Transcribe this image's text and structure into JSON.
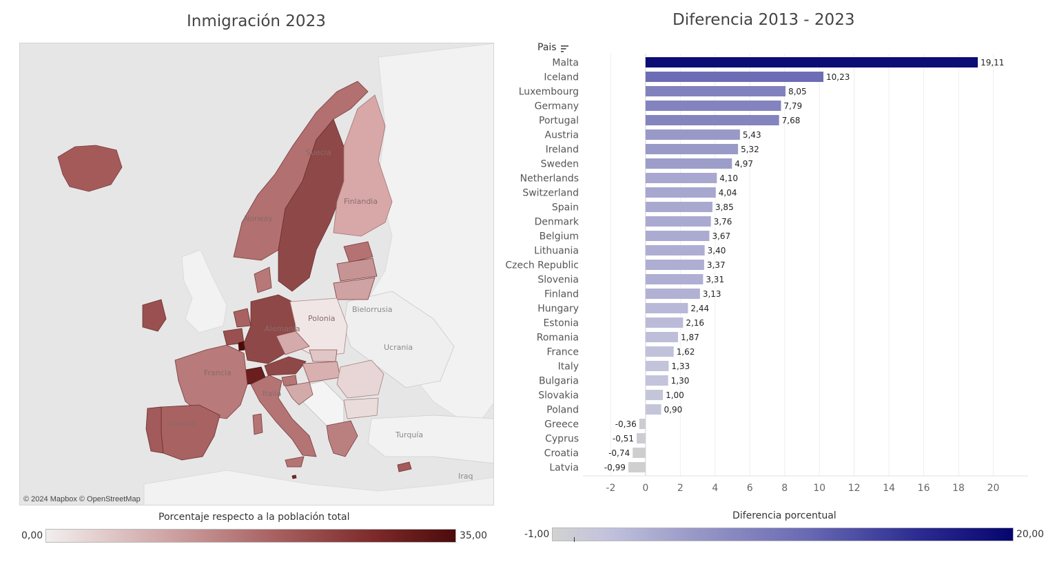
{
  "map": {
    "title": "Inmigración 2023",
    "attribution": "© 2024 Mapbox © OpenStreetMap",
    "labels": {
      "suecia": "Suecia",
      "finlandia": "Finlandia",
      "noruega": "Norway",
      "polonia": "Polonia",
      "bielorrusia": "Bielorrusia",
      "ucrania": "Ucrania",
      "alemania": "Alemania",
      "francia": "Francia",
      "espana": "España",
      "italia": "Italia",
      "turquia": "Turquía",
      "iraq": "Iraq"
    },
    "legend": {
      "title": "Porcentaje respecto a la población total",
      "min": "0,00",
      "max": "35,00"
    }
  },
  "chart_data": {
    "type": "bar",
    "orientation": "horizontal",
    "title": "Diferencia 2013 - 2023",
    "category_header": "Pais",
    "categories": [
      "Malta",
      "Iceland",
      "Luxembourg",
      "Germany",
      "Portugal",
      "Austria",
      "Ireland",
      "Sweden",
      "Netherlands",
      "Switzerland",
      "Spain",
      "Denmark",
      "Belgium",
      "Lithuania",
      "Czech Republic",
      "Slovenia",
      "Finland",
      "Hungary",
      "Estonia",
      "Romania",
      "France",
      "Italy",
      "Bulgaria",
      "Slovakia",
      "Poland",
      "Greece",
      "Cyprus",
      "Croatia",
      "Latvia"
    ],
    "values": [
      19.11,
      10.23,
      8.05,
      7.79,
      7.68,
      5.43,
      5.32,
      4.97,
      4.1,
      4.04,
      3.85,
      3.76,
      3.67,
      3.4,
      3.37,
      3.31,
      3.13,
      2.44,
      2.16,
      1.87,
      1.62,
      1.33,
      1.3,
      1.0,
      0.9,
      -0.36,
      -0.51,
      -0.74,
      -0.99
    ],
    "value_labels": [
      "19,11",
      "10,23",
      "8,05",
      "7,79",
      "7,68",
      "5,43",
      "5,32",
      "4,97",
      "4,10",
      "4,04",
      "3,85",
      "3,76",
      "3,67",
      "3,40",
      "3,37",
      "3,31",
      "3,13",
      "2,44",
      "2,16",
      "1,87",
      "1,62",
      "1,33",
      "1,30",
      "1,00",
      "0,90",
      "-0,36",
      "-0,51",
      "-0,74",
      "-0,99"
    ],
    "xlim": [
      -3.6,
      22
    ],
    "xticks": [
      -2,
      0,
      2,
      4,
      6,
      8,
      10,
      12,
      14,
      16,
      18,
      20
    ],
    "grid": true,
    "sorted": "descending",
    "color_legend": {
      "title": "Diferencia porcentual",
      "min": "-1,00",
      "max": "20,00"
    }
  },
  "colors": {
    "bar_low": "#cfcfcf",
    "bar_mid": "#9a9ac8",
    "bar_high": "#05056e",
    "map_low": "#f2eeee",
    "map_high": "#4c0b0b"
  }
}
